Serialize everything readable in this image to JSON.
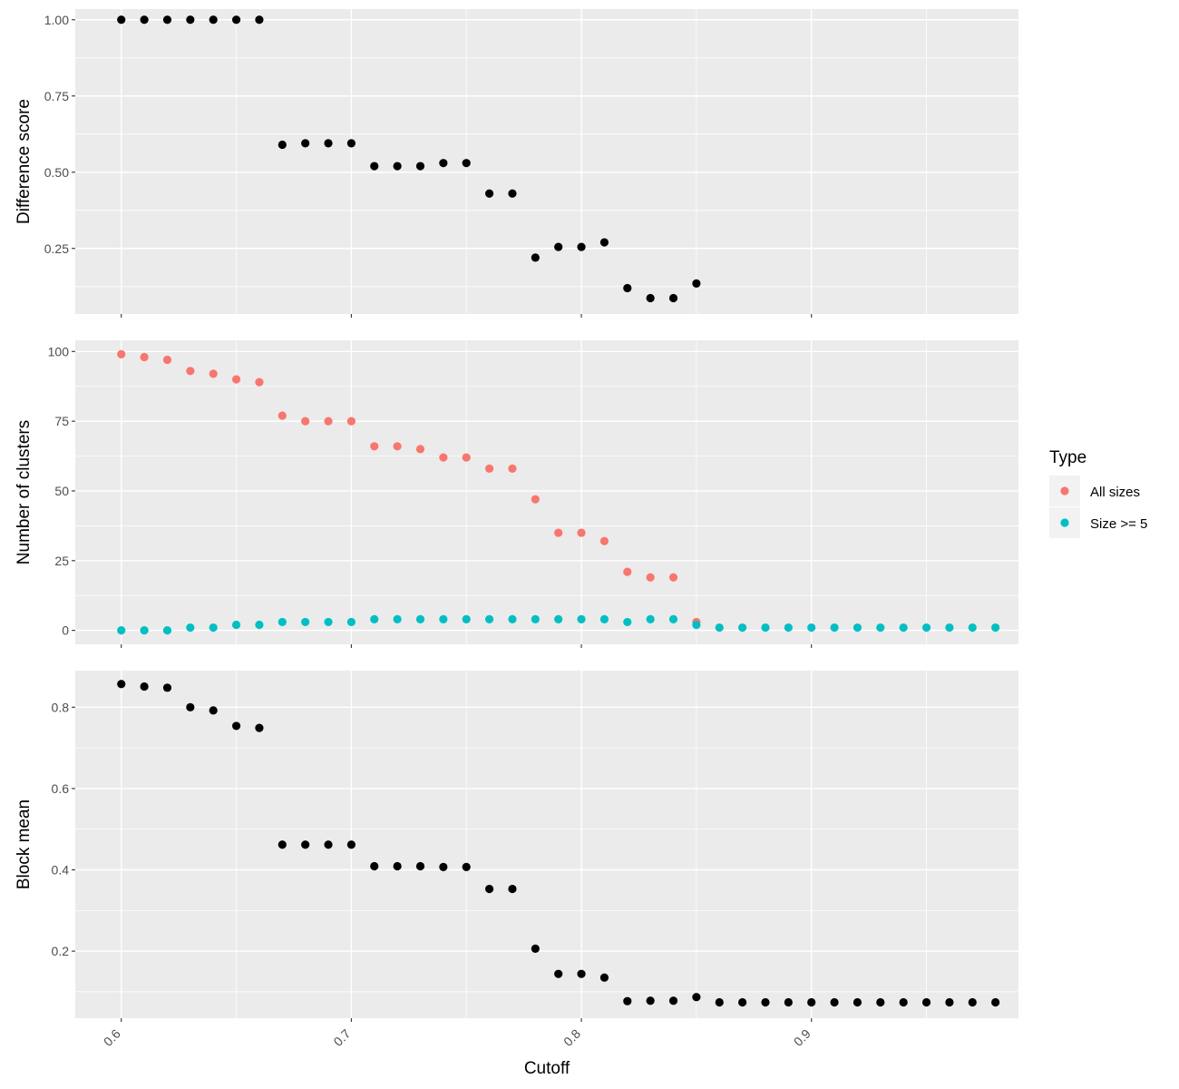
{
  "chart_data": [
    {
      "type": "scatter",
      "ylabel": "Difference score",
      "xlim": [
        0.58,
        0.99
      ],
      "ylim": [
        0.035,
        1.035
      ],
      "yticks": [
        0.25,
        0.5,
        0.75,
        1.0
      ],
      "ytick_labels": [
        "0.25",
        "0.50",
        "0.75",
        "1.00"
      ],
      "grid": true,
      "series": [
        {
          "color": "#000000",
          "x": [
            0.6,
            0.61,
            0.62,
            0.63,
            0.64,
            0.65,
            0.66,
            0.67,
            0.68,
            0.69,
            0.7,
            0.71,
            0.72,
            0.73,
            0.74,
            0.75,
            0.76,
            0.77,
            0.78,
            0.79,
            0.8,
            0.81,
            0.82,
            0.83,
            0.84,
            0.85
          ],
          "y": [
            1.0,
            1.0,
            1.0,
            1.0,
            1.0,
            1.0,
            1.0,
            0.59,
            0.595,
            0.595,
            0.595,
            0.52,
            0.52,
            0.52,
            0.53,
            0.53,
            0.43,
            0.43,
            0.22,
            0.255,
            0.255,
            0.27,
            0.12,
            0.087,
            0.087,
            0.135
          ]
        }
      ]
    },
    {
      "type": "scatter",
      "ylabel": "Number of clusters",
      "xlim": [
        0.58,
        0.99
      ],
      "ylim": [
        -5,
        104
      ],
      "yticks": [
        0,
        25,
        50,
        75,
        100
      ],
      "ytick_labels": [
        "0",
        "25",
        "50",
        "75",
        "100"
      ],
      "grid": true,
      "legend": {
        "title": "Type",
        "placement": "right",
        "entries": [
          {
            "label": "All sizes",
            "color": "#F8766D"
          },
          {
            "label": "Size >= 5",
            "color": "#00BFC4"
          }
        ]
      },
      "series": [
        {
          "name": "All sizes",
          "color": "#F8766D",
          "x": [
            0.6,
            0.61,
            0.62,
            0.63,
            0.64,
            0.65,
            0.66,
            0.67,
            0.68,
            0.69,
            0.7,
            0.71,
            0.72,
            0.73,
            0.74,
            0.75,
            0.76,
            0.77,
            0.78,
            0.79,
            0.8,
            0.81,
            0.82,
            0.83,
            0.84,
            0.85
          ],
          "y": [
            99,
            98,
            97,
            93,
            92,
            90,
            89,
            77,
            75,
            75,
            75,
            66,
            66,
            65,
            62,
            62,
            58,
            58,
            47,
            35,
            35,
            32,
            21,
            19,
            19,
            3
          ]
        },
        {
          "name": "Size >= 5",
          "color": "#00BFC4",
          "x": [
            0.6,
            0.61,
            0.62,
            0.63,
            0.64,
            0.65,
            0.66,
            0.67,
            0.68,
            0.69,
            0.7,
            0.71,
            0.72,
            0.73,
            0.74,
            0.75,
            0.76,
            0.77,
            0.78,
            0.79,
            0.8,
            0.81,
            0.82,
            0.83,
            0.84,
            0.85,
            0.86,
            0.87,
            0.88,
            0.89,
            0.9,
            0.91,
            0.92,
            0.93,
            0.94,
            0.95,
            0.96,
            0.97,
            0.98
          ],
          "y": [
            0,
            0,
            0,
            1,
            1,
            2,
            2,
            3,
            3,
            3,
            3,
            4,
            4,
            4,
            4,
            4,
            4,
            4,
            4,
            4,
            4,
            4,
            3,
            4,
            4,
            2,
            1,
            1,
            1,
            1,
            1,
            1,
            1,
            1,
            1,
            1,
            1,
            1,
            1
          ]
        }
      ]
    },
    {
      "type": "scatter",
      "ylabel": "Block mean",
      "xlabel": "Cutoff",
      "xlim": [
        0.58,
        0.99
      ],
      "ylim": [
        0.035,
        0.89
      ],
      "yticks": [
        0.2,
        0.4,
        0.6,
        0.8
      ],
      "ytick_labels": [
        "0.2",
        "0.4",
        "0.6",
        "0.8"
      ],
      "xticks": [
        0.6,
        0.7,
        0.8,
        0.9
      ],
      "xtick_labels": [
        "0.6",
        "0.7",
        "0.8",
        "0.9"
      ],
      "grid": true,
      "series": [
        {
          "color": "#000000",
          "x": [
            0.6,
            0.61,
            0.62,
            0.63,
            0.64,
            0.65,
            0.66,
            0.67,
            0.68,
            0.69,
            0.7,
            0.71,
            0.72,
            0.73,
            0.74,
            0.75,
            0.76,
            0.77,
            0.78,
            0.79,
            0.8,
            0.81,
            0.82,
            0.83,
            0.84,
            0.85,
            0.86,
            0.87,
            0.88,
            0.89,
            0.9,
            0.91,
            0.92,
            0.93,
            0.94,
            0.95,
            0.96,
            0.97,
            0.98
          ],
          "y": [
            0.857,
            0.851,
            0.848,
            0.8,
            0.792,
            0.754,
            0.749,
            0.462,
            0.462,
            0.462,
            0.462,
            0.409,
            0.409,
            0.409,
            0.407,
            0.407,
            0.353,
            0.353,
            0.206,
            0.144,
            0.144,
            0.135,
            0.077,
            0.078,
            0.078,
            0.087,
            0.074,
            0.074,
            0.074,
            0.074,
            0.074,
            0.074,
            0.074,
            0.074,
            0.074,
            0.074,
            0.074,
            0.074,
            0.074
          ]
        }
      ]
    }
  ]
}
